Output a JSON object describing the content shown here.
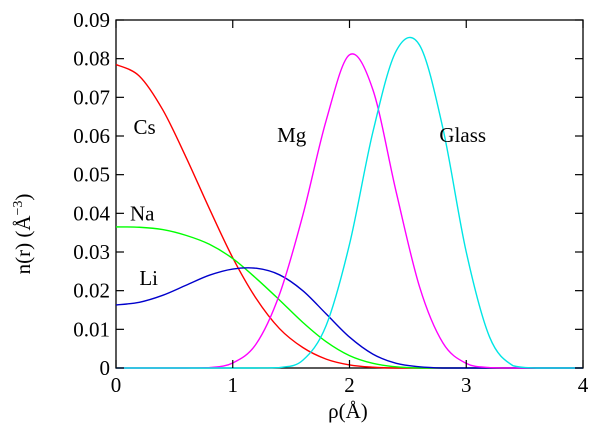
{
  "chart_data": {
    "type": "line",
    "title": "",
    "xlabel": "ρ(Å)",
    "ylabel_main": "n(r) (Å",
    "ylabel_exp": "−3",
    "ylabel_close": ")",
    "xlim": [
      0,
      4
    ],
    "ylim": [
      0,
      0.09
    ],
    "xticks": [
      0,
      1,
      2,
      3,
      4
    ],
    "xtick_labels": [
      "0",
      "1",
      "2",
      "3",
      "4"
    ],
    "yticks": [
      0,
      0.01,
      0.02,
      0.03,
      0.04,
      0.05,
      0.06,
      0.07,
      0.08,
      0.09
    ],
    "ytick_labels": [
      "0",
      "0.01",
      "0.02",
      "0.03",
      "0.04",
      "0.05",
      "0.06",
      "0.07",
      "0.08",
      "0.09"
    ],
    "grid": false,
    "legend": "inline labels",
    "x": [
      0,
      0.2,
      0.4,
      0.6,
      0.8,
      1.0,
      1.2,
      1.4,
      1.6,
      1.8,
      2.0,
      2.2,
      2.4,
      2.6,
      2.8,
      3.0,
      3.2,
      3.4,
      3.6,
      3.8,
      4.0
    ],
    "series": [
      {
        "name": "Cs",
        "color": "#ff0000",
        "values": [
          0.0785,
          0.0755,
          0.0668,
          0.0545,
          0.0412,
          0.0285,
          0.018,
          0.0102,
          0.0053,
          0.0023,
          0.0008,
          0.0002,
          0,
          0,
          0,
          0,
          0,
          0,
          0,
          0,
          0
        ]
      },
      {
        "name": "Na",
        "color": "#00ff00",
        "values": [
          0.0365,
          0.0364,
          0.0358,
          0.0343,
          0.032,
          0.0283,
          0.0232,
          0.0176,
          0.0118,
          0.0068,
          0.0032,
          0.0012,
          0.0003,
          0,
          0,
          0,
          0,
          0,
          0,
          0,
          0
        ]
      },
      {
        "name": "Li",
        "color": "#0000cc",
        "values": [
          0.0163,
          0.017,
          0.0188,
          0.0214,
          0.024,
          0.0256,
          0.0258,
          0.0241,
          0.02,
          0.014,
          0.008,
          0.0036,
          0.0012,
          0.0003,
          0,
          0,
          0,
          0,
          0,
          0,
          0
        ]
      },
      {
        "name": "Mg",
        "color": "#ff00ff",
        "values": [
          0,
          0,
          0,
          0,
          0.0001,
          0.0013,
          0.0062,
          0.019,
          0.0395,
          0.064,
          0.081,
          0.072,
          0.0455,
          0.021,
          0.0065,
          0.0012,
          0.0001,
          0,
          0,
          0,
          0
        ]
      },
      {
        "name": "Glass",
        "color": "#00e5e5",
        "values": [
          0,
          0,
          0,
          0,
          0,
          0,
          0,
          0.0001,
          0.002,
          0.011,
          0.032,
          0.061,
          0.082,
          0.0835,
          0.062,
          0.03,
          0.008,
          0.0006,
          0,
          0,
          0
        ]
      }
    ]
  }
}
